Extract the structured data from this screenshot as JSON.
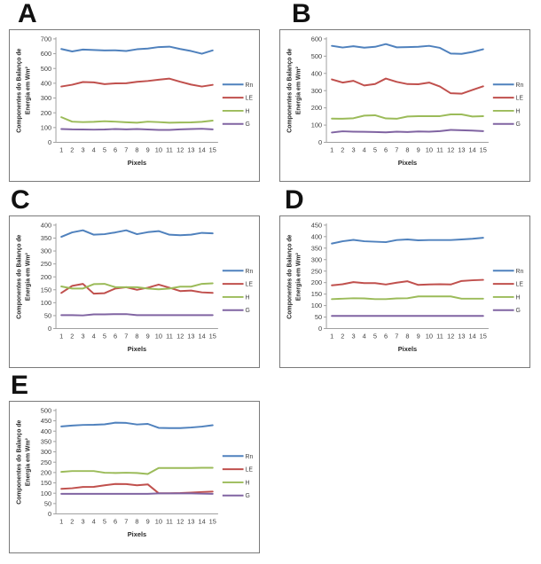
{
  "figure": {
    "xlabel": "Pixels",
    "ylabel_line1": "Componentes do Balanço  de",
    "ylabel_line2": "Energia em Wm²",
    "legend": [
      "Rn",
      "LE",
      "H",
      "G"
    ],
    "colors": {
      "Rn": "#4F81BD",
      "LE": "#C0504D",
      "H": "#9BBB59",
      "G": "#8064A2",
      "axis": "#a0a0a0",
      "tick_text": "#3f3f3f",
      "frame": "#7a7a7a"
    }
  },
  "chart_data": [
    {
      "panel_label": "A",
      "type": "line",
      "x": [
        1,
        2,
        3,
        4,
        5,
        6,
        7,
        8,
        9,
        10,
        11,
        12,
        13,
        14,
        15
      ],
      "xlabel": "Pixels",
      "ylabel": "Componentes do Balanço de Energia em Wm²",
      "ylim": [
        0,
        700
      ],
      "ytick_step": 100,
      "grid": false,
      "legend_position": "right",
      "series": [
        {
          "name": "Rn",
          "color": "#4F81BD",
          "values": [
            632,
            615,
            628,
            625,
            622,
            623,
            618,
            630,
            635,
            645,
            648,
            632,
            618,
            600,
            622
          ]
        },
        {
          "name": "LE",
          "color": "#C0504D",
          "values": [
            378,
            390,
            408,
            406,
            394,
            399,
            400,
            410,
            415,
            424,
            431,
            410,
            391,
            378,
            389
          ]
        },
        {
          "name": "H",
          "color": "#9BBB59",
          "values": [
            170,
            140,
            137,
            139,
            143,
            140,
            136,
            133,
            140,
            137,
            133,
            134,
            135,
            139,
            147
          ]
        },
        {
          "name": "G",
          "color": "#8064A2",
          "values": [
            90,
            88,
            87,
            86,
            87,
            90,
            88,
            90,
            87,
            84,
            84,
            88,
            90,
            92,
            88
          ]
        }
      ]
    },
    {
      "panel_label": "B",
      "type": "line",
      "x": [
        1,
        2,
        3,
        4,
        5,
        6,
        7,
        8,
        9,
        10,
        11,
        12,
        13,
        14,
        15
      ],
      "xlabel": "Pixels",
      "ylabel": "Componentes do Balanço de Energia em Wm²",
      "ylim": [
        0,
        600
      ],
      "ytick_step": 100,
      "grid": false,
      "legend_position": "right",
      "series": [
        {
          "name": "Rn",
          "color": "#4F81BD",
          "values": [
            560,
            550,
            558,
            549,
            554,
            570,
            551,
            552,
            554,
            560,
            548,
            515,
            513,
            524,
            540
          ]
        },
        {
          "name": "LE",
          "color": "#C0504D",
          "values": [
            365,
            347,
            357,
            330,
            338,
            370,
            351,
            338,
            337,
            347,
            324,
            285,
            282,
            304,
            325
          ]
        },
        {
          "name": "H",
          "color": "#9BBB59",
          "values": [
            138,
            137,
            140,
            155,
            157,
            139,
            137,
            150,
            152,
            152,
            152,
            162,
            162,
            150,
            152
          ]
        },
        {
          "name": "G",
          "color": "#8064A2",
          "values": [
            57,
            64,
            62,
            61,
            60,
            58,
            62,
            60,
            63,
            62,
            65,
            72,
            70,
            68,
            65
          ]
        }
      ]
    },
    {
      "panel_label": "C",
      "type": "line",
      "x": [
        1,
        2,
        3,
        4,
        5,
        6,
        7,
        8,
        9,
        10,
        11,
        12,
        13,
        14,
        15
      ],
      "xlabel": "Pixels",
      "ylabel": "Componentes do Balanço de Energia em Wm²",
      "ylim": [
        0,
        400
      ],
      "ytick_step": 50,
      "grid": false,
      "legend_position": "right",
      "series": [
        {
          "name": "Rn",
          "color": "#4F81BD",
          "values": [
            355,
            372,
            380,
            363,
            365,
            372,
            380,
            365,
            373,
            377,
            363,
            361,
            363,
            370,
            368
          ]
        },
        {
          "name": "LE",
          "color": "#C0504D",
          "values": [
            138,
            165,
            173,
            135,
            137,
            155,
            160,
            150,
            158,
            170,
            158,
            145,
            147,
            140,
            138
          ]
        },
        {
          "name": "H",
          "color": "#9BBB59",
          "values": [
            163,
            155,
            155,
            172,
            173,
            160,
            160,
            160,
            155,
            152,
            155,
            162,
            162,
            173,
            175
          ]
        },
        {
          "name": "G",
          "color": "#8064A2",
          "values": [
            52,
            52,
            51,
            55,
            55,
            56,
            56,
            52,
            52,
            52,
            52,
            52,
            52,
            52,
            52
          ]
        }
      ]
    },
    {
      "panel_label": "D",
      "type": "line",
      "x": [
        1,
        2,
        3,
        4,
        5,
        6,
        7,
        8,
        9,
        10,
        11,
        12,
        13,
        14,
        15
      ],
      "xlabel": "Pixels",
      "ylabel": "Componentes do Balanço de Energia em Wm²",
      "ylim": [
        0,
        450
      ],
      "ytick_step": 50,
      "grid": false,
      "legend_position": "right",
      "series": [
        {
          "name": "Rn",
          "color": "#4F81BD",
          "values": [
            370,
            380,
            386,
            380,
            378,
            376,
            385,
            388,
            384,
            385,
            385,
            385,
            388,
            391,
            395
          ]
        },
        {
          "name": "LE",
          "color": "#C0504D",
          "values": [
            188,
            193,
            202,
            198,
            198,
            192,
            200,
            206,
            190,
            192,
            193,
            192,
            207,
            210,
            212
          ]
        },
        {
          "name": "H",
          "color": "#9BBB59",
          "values": [
            128,
            130,
            132,
            131,
            128,
            128,
            131,
            132,
            140,
            140,
            140,
            140,
            130,
            130,
            130
          ]
        },
        {
          "name": "G",
          "color": "#8064A2",
          "values": [
            55,
            55,
            55,
            55,
            55,
            55,
            55,
            55,
            55,
            55,
            55,
            55,
            55,
            55,
            55
          ]
        }
      ]
    },
    {
      "panel_label": "E",
      "type": "line",
      "x": [
        1,
        2,
        3,
        4,
        5,
        6,
        7,
        8,
        9,
        10,
        11,
        12,
        13,
        14,
        15
      ],
      "xlabel": "Pixels",
      "ylabel": "Componentes do Balanço de Energia em Wm²",
      "ylim": [
        0,
        500
      ],
      "ytick_step": 50,
      "grid": false,
      "legend_position": "right",
      "series": [
        {
          "name": "Rn",
          "color": "#4F81BD",
          "values": [
            423,
            427,
            430,
            431,
            433,
            441,
            440,
            432,
            435,
            416,
            415,
            415,
            418,
            422,
            429
          ]
        },
        {
          "name": "LE",
          "color": "#C0504D",
          "values": [
            121,
            124,
            130,
            131,
            138,
            145,
            144,
            138,
            143,
            100,
            100,
            101,
            103,
            106,
            108
          ]
        },
        {
          "name": "H",
          "color": "#9BBB59",
          "values": [
            203,
            207,
            207,
            207,
            199,
            198,
            199,
            198,
            193,
            222,
            222,
            222,
            222,
            223,
            223
          ]
        },
        {
          "name": "G",
          "color": "#8064A2",
          "values": [
            97,
            97,
            97,
            97,
            97,
            97,
            97,
            97,
            97,
            99,
            99,
            99,
            99,
            98,
            97
          ]
        }
      ]
    }
  ]
}
